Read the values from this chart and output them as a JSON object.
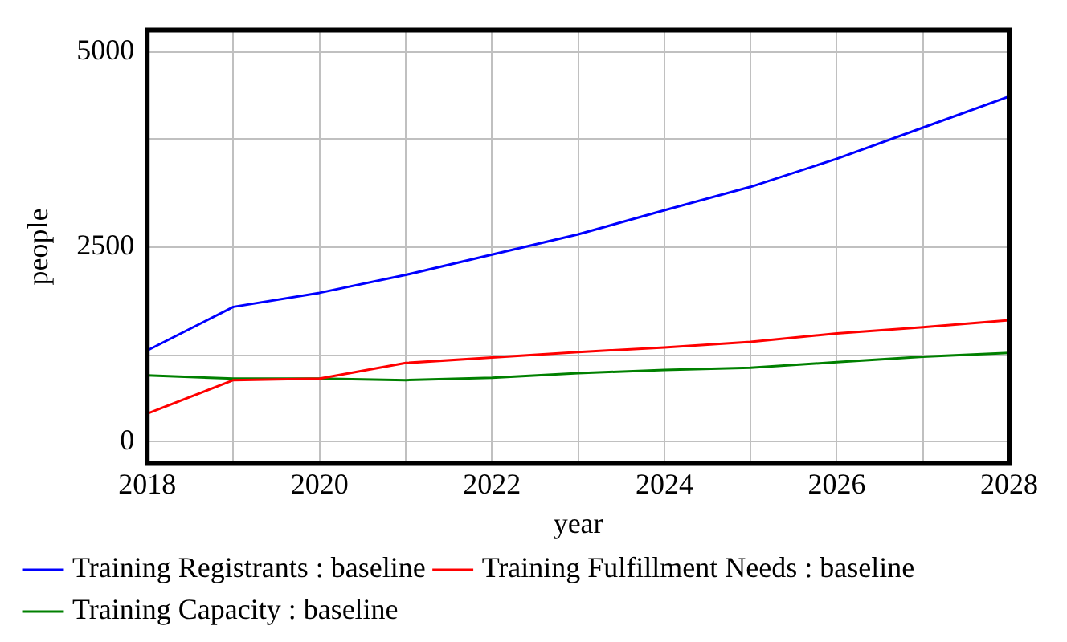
{
  "chart_data": {
    "type": "line",
    "xlabel": "year",
    "ylabel": "people",
    "x": [
      2018,
      2019,
      2020,
      2021,
      2022,
      2023,
      2024,
      2025,
      2026,
      2027,
      2028
    ],
    "xlim": [
      2018,
      2028
    ],
    "xticks": [
      2018,
      {
        "value": 2019,
        "label": null
      },
      2020,
      {
        "value": 2021,
        "label": null
      },
      2022,
      {
        "value": 2023,
        "label": null
      },
      2024,
      {
        "value": 2025,
        "label": null
      },
      2026,
      {
        "value": 2027,
        "label": null
      },
      2028
    ],
    "ylim": [
      -280,
      5280
    ],
    "yticks": [
      0,
      {
        "value": 1110,
        "label": null
      },
      2500,
      {
        "value": 3890,
        "label": null
      },
      5000
    ],
    "grid": true,
    "legend": "bottom",
    "series": [
      {
        "name": "Training Registrants : baseline",
        "color": "#0000ff",
        "values": [
          1170,
          1730,
          1910,
          2140,
          2400,
          2660,
          2970,
          3270,
          3630,
          4030,
          4430
        ]
      },
      {
        "name": "Training Fulfillment Needs : baseline",
        "color": "#ff0000",
        "values": [
          360,
          790,
          810,
          1010,
          1080,
          1150,
          1210,
          1280,
          1390,
          1470,
          1560
        ]
      },
      {
        "name": "Training Capacity : baseline",
        "color": "#008000",
        "values": [
          850,
          810,
          810,
          790,
          820,
          880,
          920,
          950,
          1020,
          1090,
          1140
        ]
      }
    ]
  }
}
